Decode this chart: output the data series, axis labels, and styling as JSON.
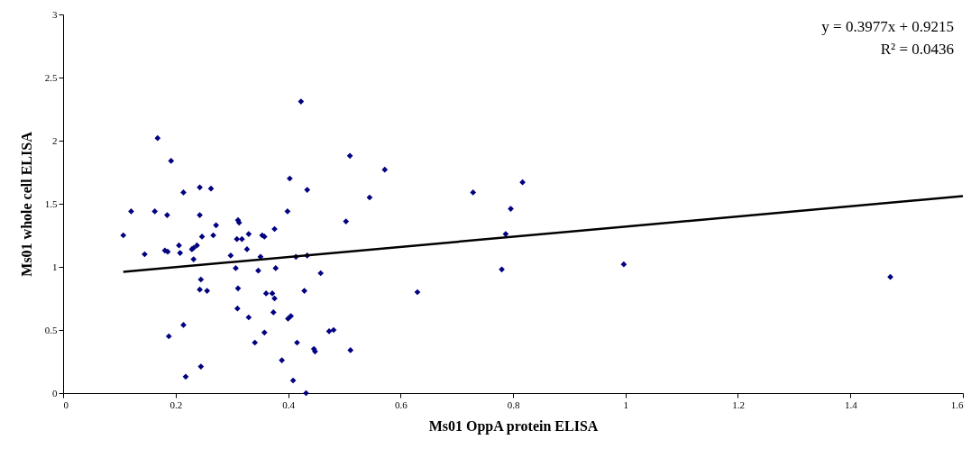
{
  "chart_data": {
    "type": "scatter",
    "xlabel": "Ms01 OppA protein ELISA",
    "ylabel": "Ms01 whole cell ELISA",
    "annotations": [
      "y = 0.3977x + 0.9215",
      "R² = 0.0436"
    ],
    "xlim": [
      0,
      1.6
    ],
    "xticks": [
      0,
      0.2,
      0.4,
      0.6,
      0.8,
      1,
      1.2,
      1.4,
      1.6
    ],
    "ylim": [
      0,
      3
    ],
    "yticks": [
      0,
      0.5,
      1,
      1.5,
      2,
      2.5,
      3
    ],
    "grid": false,
    "series": [
      {
        "color": "#000080",
        "marker": "diamond",
        "x": [
          0.107,
          0.121,
          0.145,
          0.163,
          0.168,
          0.423,
          0.192,
          0.403,
          0.434,
          0.214,
          0.243,
          0.263,
          0.185,
          0.243,
          0.399,
          0.311,
          0.313,
          0.272,
          0.376,
          0.33,
          0.354,
          0.358,
          0.267,
          0.247,
          0.309,
          0.318,
          0.206,
          0.238,
          0.232,
          0.229,
          0.327,
          0.181,
          0.186,
          0.208,
          0.298,
          0.351,
          0.414,
          0.434,
          0.232,
          0.307,
          0.347,
          0.378,
          0.458,
          0.245,
          0.243,
          0.256,
          0.311,
          0.429,
          0.361,
          0.372,
          0.376,
          0.31,
          0.374,
          0.33,
          0.4,
          0.405,
          0.214,
          0.188,
          0.473,
          0.481,
          0.358,
          0.416,
          0.341,
          0.446,
          0.448,
          0.389,
          0.245,
          0.218,
          0.409,
          0.432,
          0.51,
          0.572,
          0.545,
          0.503,
          0.729,
          0.817,
          0.796,
          0.787,
          0.78,
          0.63,
          0.511,
          0.997,
          1.471
        ],
        "values": [
          1.25,
          1.44,
          1.1,
          1.44,
          2.02,
          2.31,
          1.84,
          1.7,
          1.61,
          1.59,
          1.63,
          1.62,
          1.41,
          1.41,
          1.44,
          1.37,
          1.35,
          1.33,
          1.3,
          1.26,
          1.25,
          1.24,
          1.25,
          1.24,
          1.22,
          1.22,
          1.17,
          1.17,
          1.15,
          1.14,
          1.14,
          1.13,
          1.12,
          1.11,
          1.09,
          1.08,
          1.08,
          1.09,
          1.06,
          0.99,
          0.97,
          0.99,
          0.95,
          0.9,
          0.82,
          0.81,
          0.83,
          0.81,
          0.79,
          0.79,
          0.75,
          0.67,
          0.64,
          0.6,
          0.59,
          0.61,
          0.54,
          0.45,
          0.49,
          0.5,
          0.48,
          0.4,
          0.4,
          0.35,
          0.33,
          0.26,
          0.21,
          0.13,
          0.1,
          0.0,
          1.88,
          1.77,
          1.55,
          1.36,
          1.59,
          1.67,
          1.46,
          1.26,
          0.98,
          0.8,
          0.34,
          1.02,
          0.92
        ]
      },
      {
        "type": "line",
        "color": "#000000",
        "line_style": "solid",
        "x": [
          0.107,
          1.6
        ],
        "values": [
          0.96,
          1.56
        ]
      }
    ]
  }
}
